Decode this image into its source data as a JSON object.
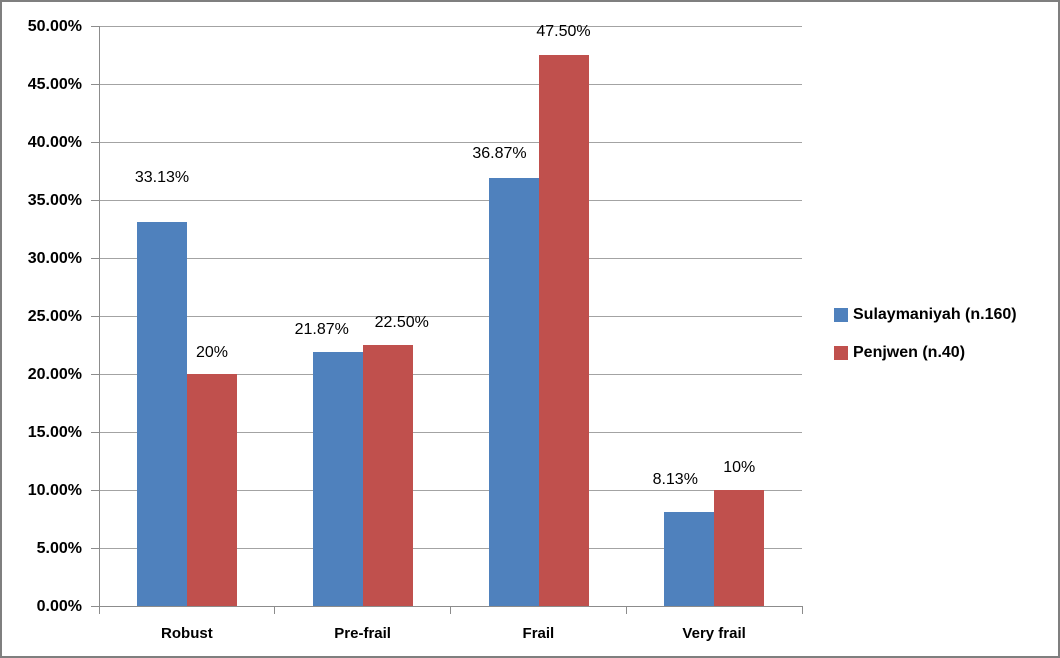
{
  "chart_data": {
    "type": "bar",
    "title": "",
    "xlabel": "",
    "ylabel": "",
    "categories": [
      "Robust",
      "Pre-frail",
      "Frail",
      "Very frail"
    ],
    "series": [
      {
        "name": "Sulaymaniyah (n.160)",
        "color": "#4F81BD",
        "values": [
          33.13,
          21.87,
          36.87,
          8.13
        ],
        "data_labels": [
          "33.13%",
          "21.87%",
          "36.87%",
          "8.13%"
        ]
      },
      {
        "name": "Penjwen (n.40)",
        "color": "#C0504D",
        "values": [
          20,
          22.5,
          47.5,
          10
        ],
        "data_labels": [
          "20%",
          "22.50%",
          "47.50%",
          "10%"
        ]
      }
    ],
    "y_axis": {
      "min": 0,
      "max": 50,
      "step": 5,
      "tick_labels": [
        "0.00%",
        "5.00%",
        "10.00%",
        "15.00%",
        "20.00%",
        "25.00%",
        "30.00%",
        "35.00%",
        "40.00%",
        "45.00%",
        "50.00%"
      ]
    },
    "grid": true,
    "legend_position": "right"
  },
  "colors": {
    "series_blue": "#4F81BD",
    "series_red": "#C0504D",
    "gridline": "#A3A3A3",
    "axis": "#8C8C8C",
    "frame_border": "#7F7F7F",
    "background": "#FFFFFF",
    "text": "#000000"
  }
}
